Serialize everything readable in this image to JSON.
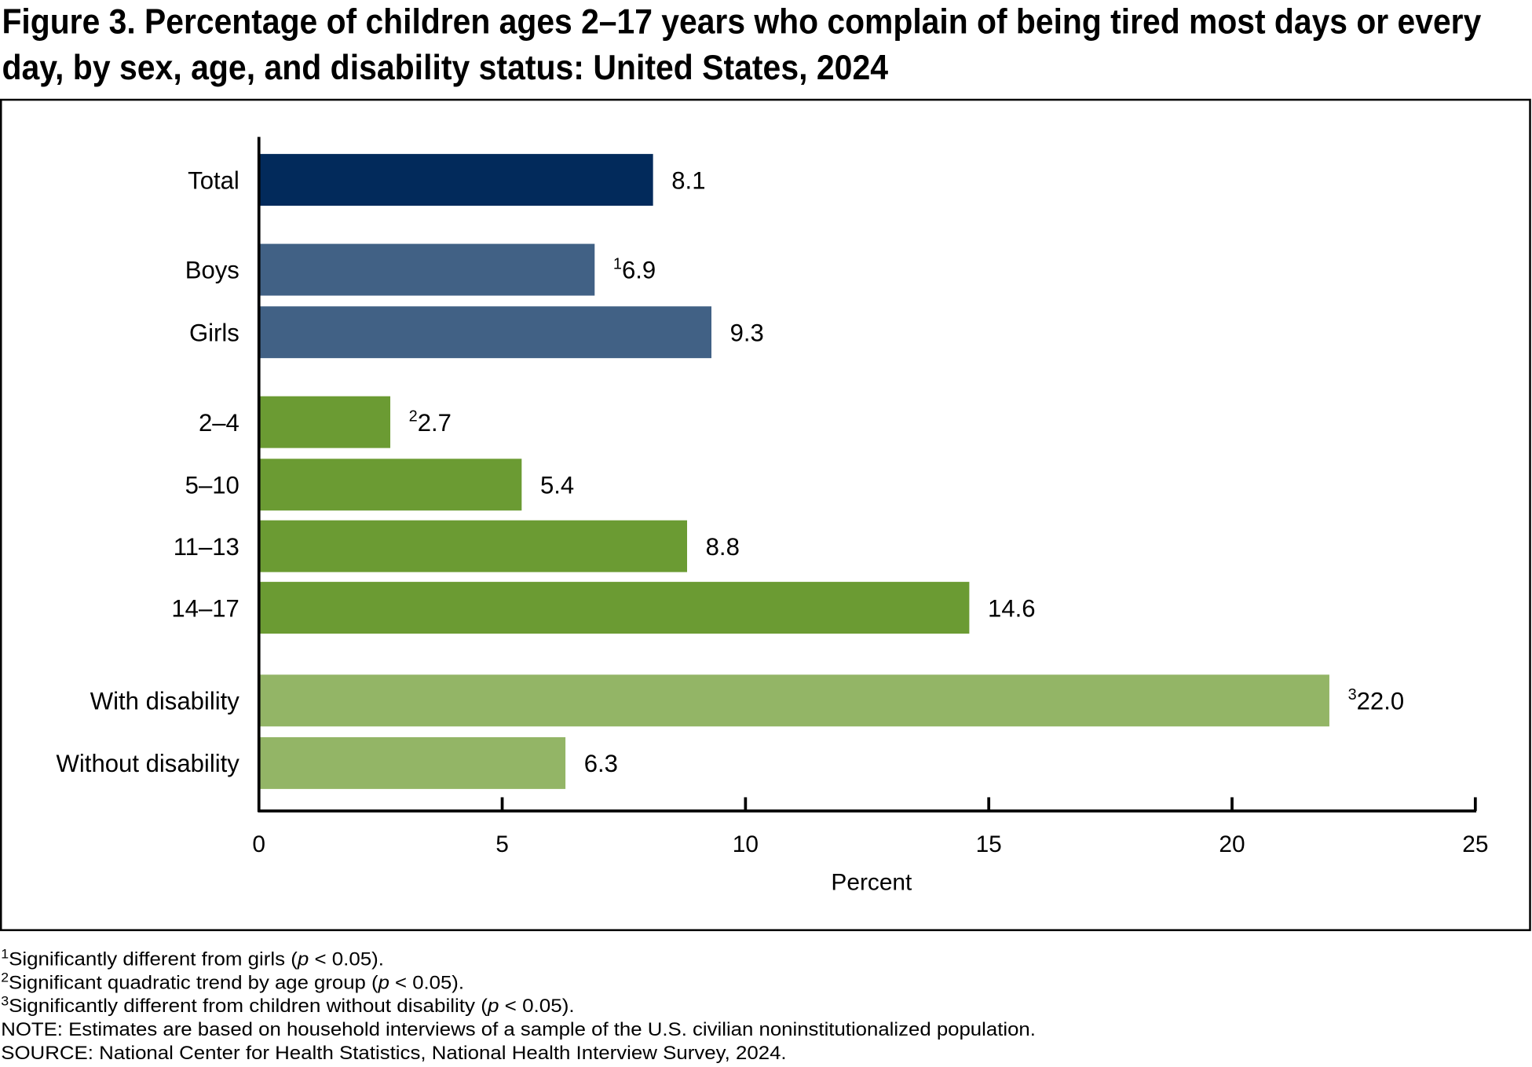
{
  "title_lines": [
    "Figure 3. Percentage of children ages 2–17 years who complain of being tired most days or every",
    "day, by sex, age, and disability status: United States, 2024"
  ],
  "chart_data": {
    "type": "bar",
    "orientation": "horizontal",
    "categories": [
      "Total",
      "Boys",
      "Girls",
      "2–4",
      "5–10",
      "11–13",
      "14–17",
      "With disability",
      "Without disability"
    ],
    "values": [
      8.1,
      6.9,
      9.3,
      2.7,
      5.4,
      8.8,
      14.6,
      22.0,
      6.3
    ],
    "value_labels": [
      "8.1",
      "6.9",
      "9.3",
      "2.7",
      "5.4",
      "8.8",
      "14.6",
      "22.0",
      "6.3"
    ],
    "footnote_marks": [
      "",
      "1",
      "",
      "2",
      "",
      "",
      "",
      "3",
      ""
    ],
    "groups": [
      "total",
      "sex",
      "sex",
      "age",
      "age",
      "age",
      "age",
      "disability",
      "disability"
    ],
    "group_colors": {
      "total": "#022a5b",
      "sex": "#416185",
      "age": "#6b9b33",
      "disability": "#93b566"
    },
    "xlabel": "Percent",
    "ylabel": "",
    "xlim": [
      0,
      25
    ],
    "xticks": [
      0,
      5,
      10,
      15,
      20,
      25
    ],
    "grid": false
  },
  "footnotes": [
    {
      "mark": "1",
      "pre": "Significantly different from girls (",
      "p": "p",
      "post": " < 0.05)."
    },
    {
      "mark": "2",
      "pre": "Significant quadratic trend by age group (",
      "p": "p",
      "post": " < 0.05)."
    },
    {
      "mark": "3",
      "pre": "Significantly different from children without disability (",
      "p": "p",
      "post": " < 0.05)."
    }
  ],
  "note": "NOTE: Estimates are based on household interviews of a sample of the U.S. civilian noninstitutionalized population.",
  "source": "SOURCE: National Center for Health Statistics, National Health Interview Survey, 2024."
}
